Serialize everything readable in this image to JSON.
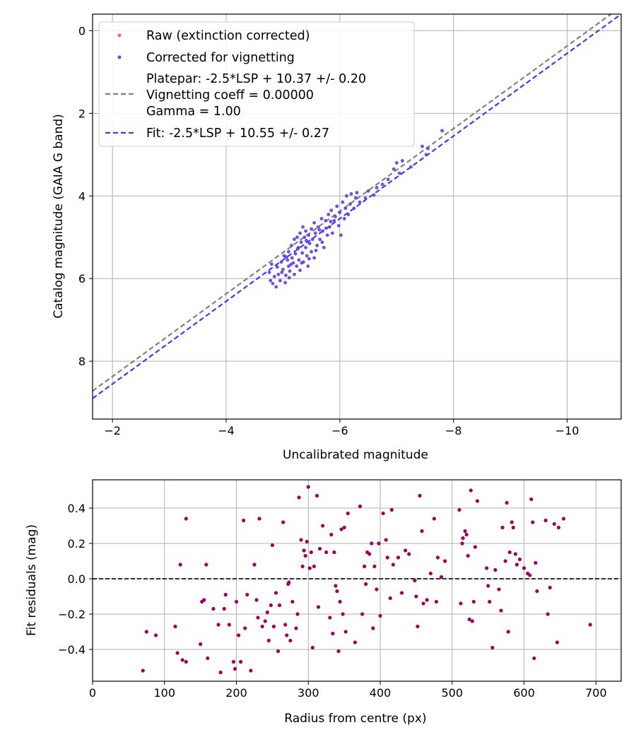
{
  "chart_data": [
    {
      "type": "scatter",
      "xlabel": "Uncalibrated magnitude",
      "ylabel": "Catalog magnitude (GAIA G band)",
      "xlim": [
        -1.65,
        -10.95
      ],
      "ylim": [
        9.4,
        -0.4
      ],
      "x_inverted": true,
      "y_inverted": true,
      "xticks": [
        -2,
        -4,
        -6,
        -8,
        -10
      ],
      "xtick_labels": [
        "−2",
        "−4",
        "−6",
        "−8",
        "−10"
      ],
      "yticks": [
        0,
        2,
        4,
        6,
        8
      ],
      "ytick_labels": [
        "0",
        "2",
        "4",
        "6",
        "8"
      ],
      "grid": true,
      "legend_position": "top-left",
      "legend": {
        "raw": "Raw (extinction corrected)",
        "corrected": "Corrected for vignetting",
        "platepar_line1": "Platepar: -2.5*LSP + 10.37 +/- 0.20",
        "platepar_line2": "Vignetting coeff = 0.00000",
        "platepar_line3": "Gamma = 1.00",
        "fit": "Fit: -2.5*LSP + 10.55 +/- 0.27"
      },
      "colors": {
        "raw": "#f05a50",
        "corrected": "#4040ff",
        "overlap": "#6a1ad0",
        "platepar_line": "#808080",
        "fit_line": "#3c3cf0"
      },
      "lines": [
        {
          "name": "Platepar",
          "slope": 1.0,
          "intercept": 10.37,
          "style": "dashed"
        },
        {
          "name": "Fit",
          "slope": 1.0,
          "intercept": 10.55,
          "style": "dashed"
        }
      ],
      "points": [
        [
          -4.76,
          5.85
        ],
        [
          -4.78,
          6.05
        ],
        [
          -4.8,
          5.65
        ],
        [
          -4.82,
          6.12
        ],
        [
          -4.85,
          5.95
        ],
        [
          -4.88,
          6.2
        ],
        [
          -4.9,
          5.72
        ],
        [
          -4.92,
          5.9
        ],
        [
          -4.95,
          6.05
        ],
        [
          -4.97,
          5.6
        ],
        [
          -5.0,
          5.78
        ],
        [
          -5.02,
          5.45
        ],
        [
          -5.04,
          6.1
        ],
        [
          -5.05,
          5.92
        ],
        [
          -5.08,
          5.55
        ],
        [
          -5.1,
          5.35
        ],
        [
          -5.1,
          5.7
        ],
        [
          -5.12,
          5.82
        ],
        [
          -5.15,
          5.2
        ],
        [
          -5.16,
          5.5
        ],
        [
          -5.18,
          5.62
        ],
        [
          -5.2,
          5.05
        ],
        [
          -5.2,
          5.9
        ],
        [
          -5.22,
          5.4
        ],
        [
          -5.24,
          5.7
        ],
        [
          -5.25,
          5.0
        ],
        [
          -5.27,
          5.25
        ],
        [
          -5.28,
          5.55
        ],
        [
          -5.3,
          4.9
        ],
        [
          -5.3,
          5.8
        ],
        [
          -5.32,
          5.12
        ],
        [
          -5.34,
          5.38
        ],
        [
          -5.35,
          4.75
        ],
        [
          -5.36,
          5.6
        ],
        [
          -5.38,
          5.0
        ],
        [
          -5.4,
          5.25
        ],
        [
          -5.4,
          4.85
        ],
        [
          -5.42,
          5.45
        ],
        [
          -5.44,
          5.7
        ],
        [
          -5.45,
          4.95
        ],
        [
          -5.47,
          5.15
        ],
        [
          -5.5,
          4.8
        ],
        [
          -5.5,
          5.35
        ],
        [
          -5.52,
          5.05
        ],
        [
          -5.55,
          4.65
        ],
        [
          -5.55,
          5.5
        ],
        [
          -5.57,
          4.9
        ],
        [
          -5.6,
          5.2
        ],
        [
          -5.62,
          4.75
        ],
        [
          -5.65,
          5.05
        ],
        [
          -5.68,
          4.55
        ],
        [
          -5.7,
          4.85
        ],
        [
          -5.72,
          5.25
        ],
        [
          -5.75,
          4.6
        ],
        [
          -5.78,
          4.95
        ],
        [
          -5.8,
          4.45
        ],
        [
          -5.82,
          4.75
        ],
        [
          -5.85,
          4.35
        ],
        [
          -5.87,
          4.9
        ],
        [
          -5.9,
          4.6
        ],
        [
          -5.95,
          4.25
        ],
        [
          -5.98,
          4.72
        ],
        [
          -6.0,
          4.4
        ],
        [
          -6.02,
          4.95
        ],
        [
          -6.05,
          4.15
        ],
        [
          -6.08,
          4.55
        ],
        [
          -6.1,
          4.3
        ],
        [
          -6.12,
          4.0
        ],
        [
          -6.15,
          4.45
        ],
        [
          -6.18,
          4.2
        ],
        [
          -6.2,
          3.95
        ],
        [
          -6.25,
          4.3
        ],
        [
          -6.28,
          4.05
        ],
        [
          -6.3,
          3.92
        ],
        [
          -6.35,
          4.15
        ],
        [
          -6.45,
          4.05
        ],
        [
          -6.5,
          3.88
        ],
        [
          -6.6,
          3.98
        ],
        [
          -6.65,
          3.8
        ],
        [
          -6.75,
          3.72
        ],
        [
          -6.85,
          3.6
        ],
        [
          -6.95,
          3.35
        ],
        [
          -7.0,
          3.2
        ],
        [
          -7.05,
          3.45
        ],
        [
          -7.1,
          3.15
        ],
        [
          -7.25,
          3.3
        ],
        [
          -7.45,
          2.8
        ],
        [
          -7.55,
          2.85
        ],
        [
          -7.52,
          3.0
        ],
        [
          -7.8,
          2.42
        ],
        [
          -5.06,
          5.48
        ],
        [
          -5.14,
          5.66
        ],
        [
          -5.26,
          5.28
        ],
        [
          -5.33,
          5.62
        ],
        [
          -5.41,
          5.08
        ],
        [
          -5.46,
          5.52
        ],
        [
          -5.58,
          5.32
        ],
        [
          -5.64,
          4.82
        ],
        [
          -5.69,
          5.12
        ],
        [
          -5.76,
          4.78
        ],
        [
          -5.84,
          4.62
        ],
        [
          -5.92,
          4.5
        ],
        [
          -4.98,
          5.85
        ],
        [
          -5.11,
          5.98
        ]
      ]
    },
    {
      "type": "scatter",
      "xlabel": "Radius from centre (px)",
      "ylabel": "Fit residuals (mag)",
      "xlim": [
        0,
        735
      ],
      "ylim": [
        -0.58,
        0.56
      ],
      "xticks": [
        0,
        100,
        200,
        300,
        400,
        500,
        600,
        700
      ],
      "xtick_labels": [
        "0",
        "100",
        "200",
        "300",
        "400",
        "500",
        "600",
        "700"
      ],
      "yticks": [
        -0.4,
        -0.2,
        0.0,
        0.2,
        0.4
      ],
      "ytick_labels": [
        "−0.4",
        "−0.2",
        "0.0",
        "0.2",
        "0.4"
      ],
      "grid": true,
      "zero_line": 0.0,
      "colors": {
        "points": "#a00060",
        "zero_line": "#333333"
      },
      "points": [
        [
          70,
          -0.52
        ],
        [
          75,
          -0.3
        ],
        [
          88,
          -0.32
        ],
        [
          115,
          -0.27
        ],
        [
          118,
          -0.42
        ],
        [
          122,
          0.08
        ],
        [
          125,
          -0.46
        ],
        [
          130,
          -0.47
        ],
        [
          130,
          0.34
        ],
        [
          150,
          -0.37
        ],
        [
          152,
          -0.13
        ],
        [
          155,
          -0.12
        ],
        [
          158,
          0.08
        ],
        [
          160,
          -0.45
        ],
        [
          168,
          -0.17
        ],
        [
          175,
          -0.26
        ],
        [
          178,
          -0.53
        ],
        [
          183,
          -0.17
        ],
        [
          185,
          -0.09
        ],
        [
          190,
          -0.26
        ],
        [
          196,
          -0.47
        ],
        [
          198,
          -0.51
        ],
        [
          200,
          -0.13
        ],
        [
          203,
          -0.32
        ],
        [
          206,
          -0.47
        ],
        [
          210,
          0.33
        ],
        [
          212,
          -0.28
        ],
        [
          215,
          -0.09
        ],
        [
          220,
          -0.52
        ],
        [
          225,
          0.08
        ],
        [
          228,
          -0.12
        ],
        [
          230,
          -0.22
        ],
        [
          232,
          0.34
        ],
        [
          236,
          -0.27
        ],
        [
          240,
          -0.24
        ],
        [
          243,
          -0.19
        ],
        [
          245,
          -0.35
        ],
        [
          248,
          -0.15
        ],
        [
          250,
          0.19
        ],
        [
          252,
          -0.27
        ],
        [
          255,
          -0.08
        ],
        [
          258,
          -0.41
        ],
        [
          260,
          -0.15
        ],
        [
          265,
          0.32
        ],
        [
          268,
          -0.26
        ],
        [
          270,
          -0.32
        ],
        [
          272,
          -0.03
        ],
        [
          273,
          -0.02
        ],
        [
          275,
          -0.35
        ],
        [
          278,
          -0.13
        ],
        [
          283,
          -0.28
        ],
        [
          285,
          -0.2
        ],
        [
          287,
          0.46
        ],
        [
          290,
          0.22
        ],
        [
          292,
          0.07
        ],
        [
          294,
          0.16
        ],
        [
          296,
          0.13
        ],
        [
          298,
          0.21
        ],
        [
          300,
          0.52
        ],
        [
          302,
          0.06
        ],
        [
          304,
          0.15
        ],
        [
          306,
          -0.39
        ],
        [
          308,
          0.07
        ],
        [
          312,
          0.47
        ],
        [
          314,
          -0.16
        ],
        [
          316,
          0.17
        ],
        [
          320,
          0.3
        ],
        [
          325,
          0.15
        ],
        [
          330,
          -0.22
        ],
        [
          332,
          0.25
        ],
        [
          334,
          -0.31
        ],
        [
          336,
          0.15
        ],
        [
          338,
          -0.04
        ],
        [
          340,
          -0.07
        ],
        [
          342,
          -0.41
        ],
        [
          344,
          -0.13
        ],
        [
          346,
          0.28
        ],
        [
          348,
          -0.2
        ],
        [
          350,
          0.29
        ],
        [
          352,
          -0.3
        ],
        [
          355,
          0.37
        ],
        [
          365,
          -0.36
        ],
        [
          372,
          0.41
        ],
        [
          375,
          -0.2
        ],
        [
          378,
          0.07
        ],
        [
          380,
          -0.03
        ],
        [
          382,
          0.15
        ],
        [
          385,
          0.14
        ],
        [
          388,
          0.2
        ],
        [
          390,
          -0.28
        ],
        [
          392,
          0.07
        ],
        [
          395,
          -0.06
        ],
        [
          398,
          0.2
        ],
        [
          400,
          -0.21
        ],
        [
          404,
          0.37
        ],
        [
          408,
          0.22
        ],
        [
          410,
          0.12
        ],
        [
          414,
          -0.11
        ],
        [
          416,
          0.39
        ],
        [
          418,
          0.08
        ],
        [
          425,
          0.12
        ],
        [
          430,
          -0.08
        ],
        [
          435,
          0.16
        ],
        [
          440,
          0.14
        ],
        [
          448,
          -0.01
        ],
        [
          450,
          -0.1
        ],
        [
          452,
          -0.27
        ],
        [
          455,
          0.47
        ],
        [
          458,
          0.27
        ],
        [
          460,
          -0.14
        ],
        [
          465,
          -0.12
        ],
        [
          470,
          0.03
        ],
        [
          475,
          0.34
        ],
        [
          478,
          -0.13
        ],
        [
          480,
          0.12
        ],
        [
          485,
          0.01
        ],
        [
          490,
          0.1
        ],
        [
          510,
          0.39
        ],
        [
          512,
          -0.14
        ],
        [
          514,
          0.2
        ],
        [
          515,
          0.23
        ],
        [
          518,
          0.27
        ],
        [
          520,
          0.25
        ],
        [
          522,
          0.13
        ],
        [
          524,
          -0.23
        ],
        [
          526,
          0.5
        ],
        [
          528,
          -0.24
        ],
        [
          530,
          -0.13
        ],
        [
          532,
          0.18
        ],
        [
          535,
          0.44
        ],
        [
          548,
          0.06
        ],
        [
          550,
          -0.04
        ],
        [
          552,
          -0.13
        ],
        [
          556,
          -0.39
        ],
        [
          560,
          0.05
        ],
        [
          565,
          -0.06
        ],
        [
          568,
          -0.18
        ],
        [
          570,
          0.29
        ],
        [
          574,
          0.1
        ],
        [
          576,
          0.43
        ],
        [
          578,
          -0.3
        ],
        [
          580,
          0.15
        ],
        [
          583,
          0.32
        ],
        [
          585,
          0.29
        ],
        [
          588,
          0.14
        ],
        [
          590,
          0.08
        ],
        [
          594,
          0.11
        ],
        [
          600,
          0.06
        ],
        [
          605,
          0.03
        ],
        [
          608,
          0.02
        ],
        [
          610,
          0.45
        ],
        [
          612,
          0.32
        ],
        [
          614,
          -0.45
        ],
        [
          616,
          0.09
        ],
        [
          618,
          -0.07
        ],
        [
          630,
          0.33
        ],
        [
          633,
          -0.2
        ],
        [
          636,
          -0.05
        ],
        [
          642,
          0.31
        ],
        [
          646,
          -0.36
        ],
        [
          648,
          0.29
        ],
        [
          655,
          0.34
        ],
        [
          692,
          -0.26
        ]
      ]
    }
  ]
}
